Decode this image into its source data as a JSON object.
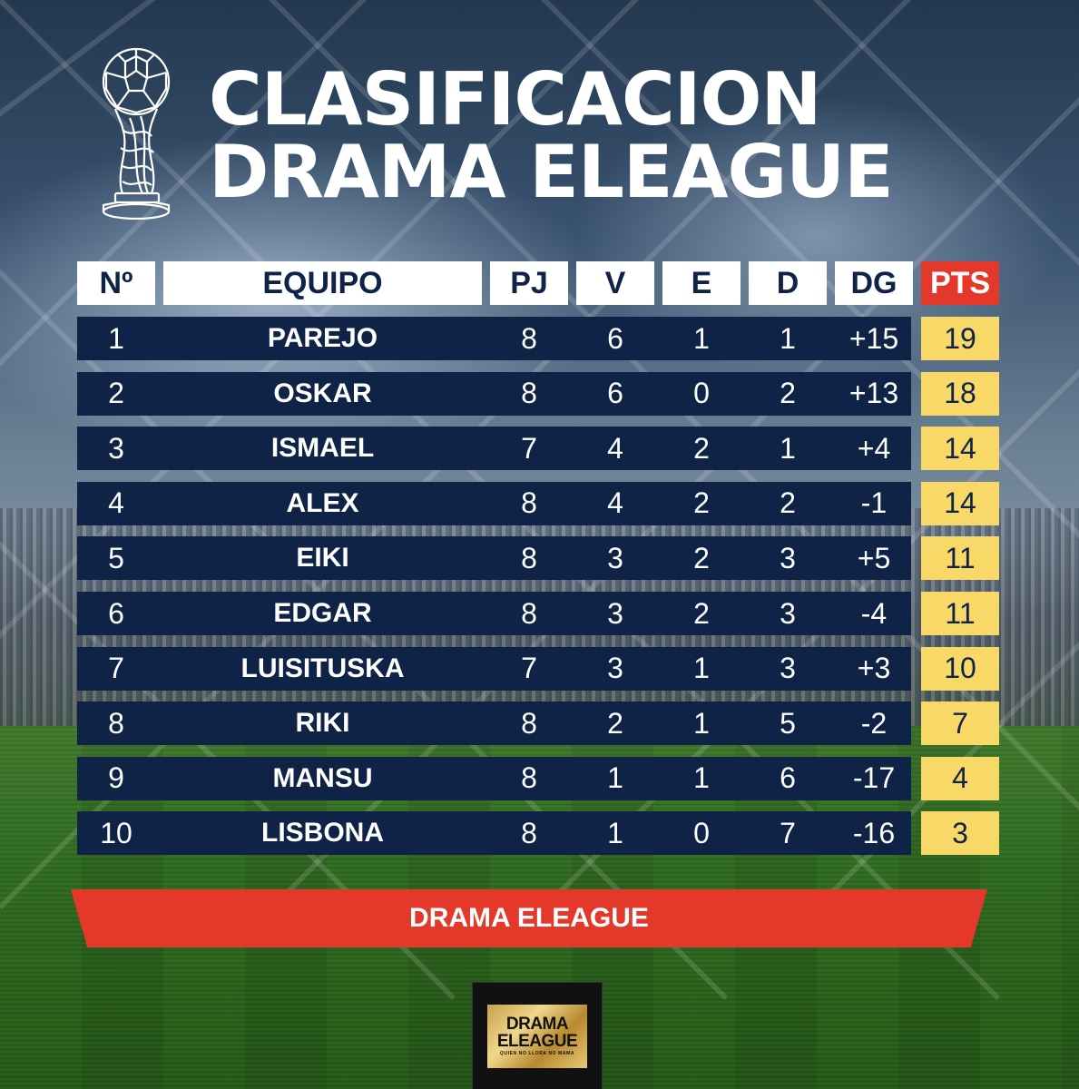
{
  "title": {
    "line1": "CLASIFICACION",
    "line2": "DRAMA ELEAGUE"
  },
  "table": {
    "headers": [
      "Nº",
      "EQUIPO",
      "PJ",
      "V",
      "E",
      "D",
      "DG",
      "PTS"
    ],
    "rows": [
      {
        "pos": "1",
        "team": "PAREJO",
        "pj": "8",
        "v": "6",
        "e": "1",
        "d": "1",
        "dg": "+15",
        "pts": "19"
      },
      {
        "pos": "2",
        "team": "OSKAR",
        "pj": "8",
        "v": "6",
        "e": "0",
        "d": "2",
        "dg": "+13",
        "pts": "18"
      },
      {
        "pos": "3",
        "team": "ISMAEL",
        "pj": "7",
        "v": "4",
        "e": "2",
        "d": "1",
        "dg": "+4",
        "pts": "14"
      },
      {
        "pos": "4",
        "team": "ALEX",
        "pj": "8",
        "v": "4",
        "e": "2",
        "d": "2",
        "dg": "-1",
        "pts": "14"
      },
      {
        "pos": "5",
        "team": "EIKI",
        "pj": "8",
        "v": "3",
        "e": "2",
        "d": "3",
        "dg": "+5",
        "pts": "11"
      },
      {
        "pos": "6",
        "team": "EDGAR",
        "pj": "8",
        "v": "3",
        "e": "2",
        "d": "3",
        "dg": "-4",
        "pts": "11"
      },
      {
        "pos": "7",
        "team": "LUISITUSKA",
        "pj": "7",
        "v": "3",
        "e": "1",
        "d": "3",
        "dg": "+3",
        "pts": "10"
      },
      {
        "pos": "8",
        "team": "RIKI",
        "pj": "8",
        "v": "2",
        "e": "1",
        "d": "5",
        "dg": "-2",
        "pts": "7"
      },
      {
        "pos": "9",
        "team": "MANSU",
        "pj": "8",
        "v": "1",
        "e": "1",
        "d": "6",
        "dg": "-17",
        "pts": "4"
      },
      {
        "pos": "10",
        "team": "LISBONA",
        "pj": "8",
        "v": "1",
        "e": "0",
        "d": "7",
        "dg": "-16",
        "pts": "3"
      }
    ]
  },
  "banner": {
    "text": "DRAMA ELEAGUE"
  },
  "logo": {
    "line1": "DRAMA",
    "line2": "ELEAGUE",
    "tagline": "QUIEN NO LLORA NO MAMA"
  },
  "icons": {
    "trophy": "trophy-icon"
  },
  "colors": {
    "navy": "#0f2347",
    "red": "#e4382b",
    "yellow": "#f8d867",
    "white": "#ffffff"
  }
}
